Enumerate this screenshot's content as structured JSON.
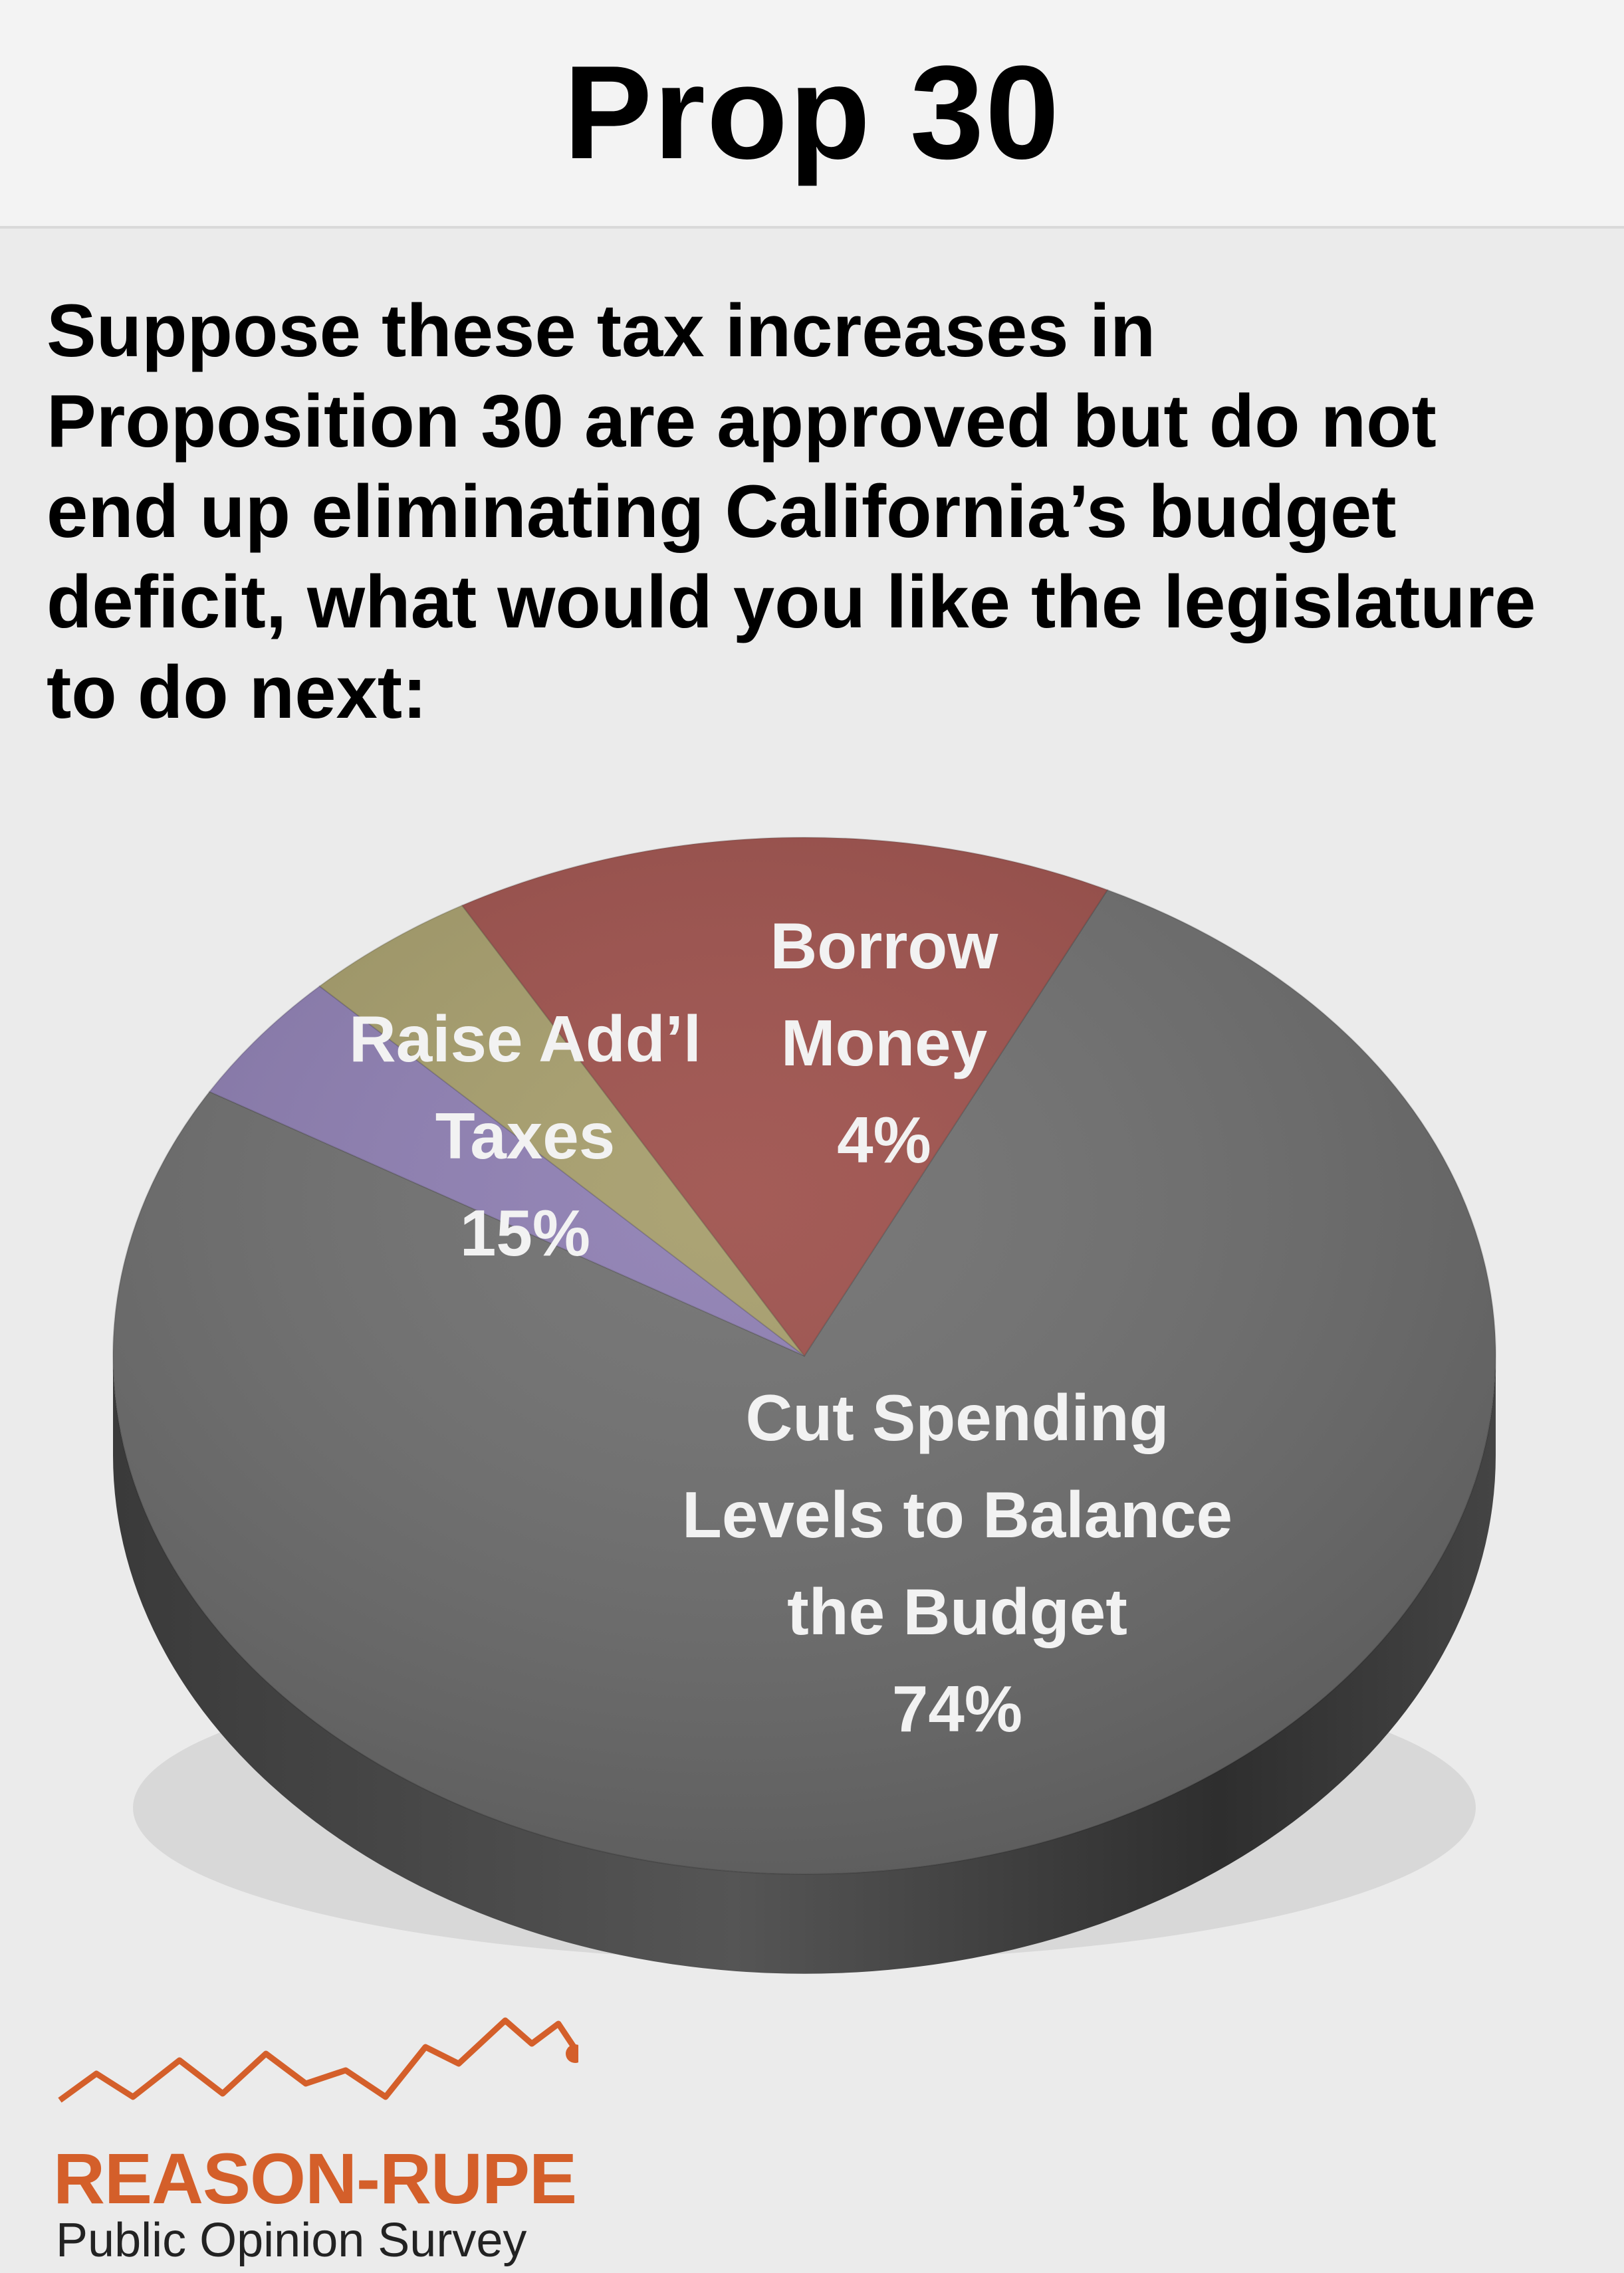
{
  "header": {
    "title": "Prop 30"
  },
  "question": "Suppose these tax increases in Proposition 30 are approved but do not end up eliminating California’s budget deficit, what would you like the legislature to do next:",
  "chart_data": {
    "type": "pie",
    "title": "Prop 30",
    "slices": [
      {
        "label_lines": [
          "Cut Spending",
          "Levels to Balance",
          "the Budget"
        ],
        "value": 74,
        "value_label": "74%",
        "color": "#6b6b6b"
      },
      {
        "label_lines": [
          "Borrow",
          "Money"
        ],
        "value": 4,
        "value_label": "4%",
        "color": "#8a7ab0"
      },
      {
        "label_lines": [],
        "value": 4,
        "value_label": "",
        "color": "#a39a66"
      },
      {
        "label_lines": [
          "Raise Add’l",
          "Taxes"
        ],
        "value": 15,
        "value_label": "15%",
        "color": "#9a4a45"
      }
    ]
  },
  "logo": {
    "name": "REASON-RUPE",
    "subtitle": "Public Opinion Survey",
    "accent": "#d45f2a"
  }
}
